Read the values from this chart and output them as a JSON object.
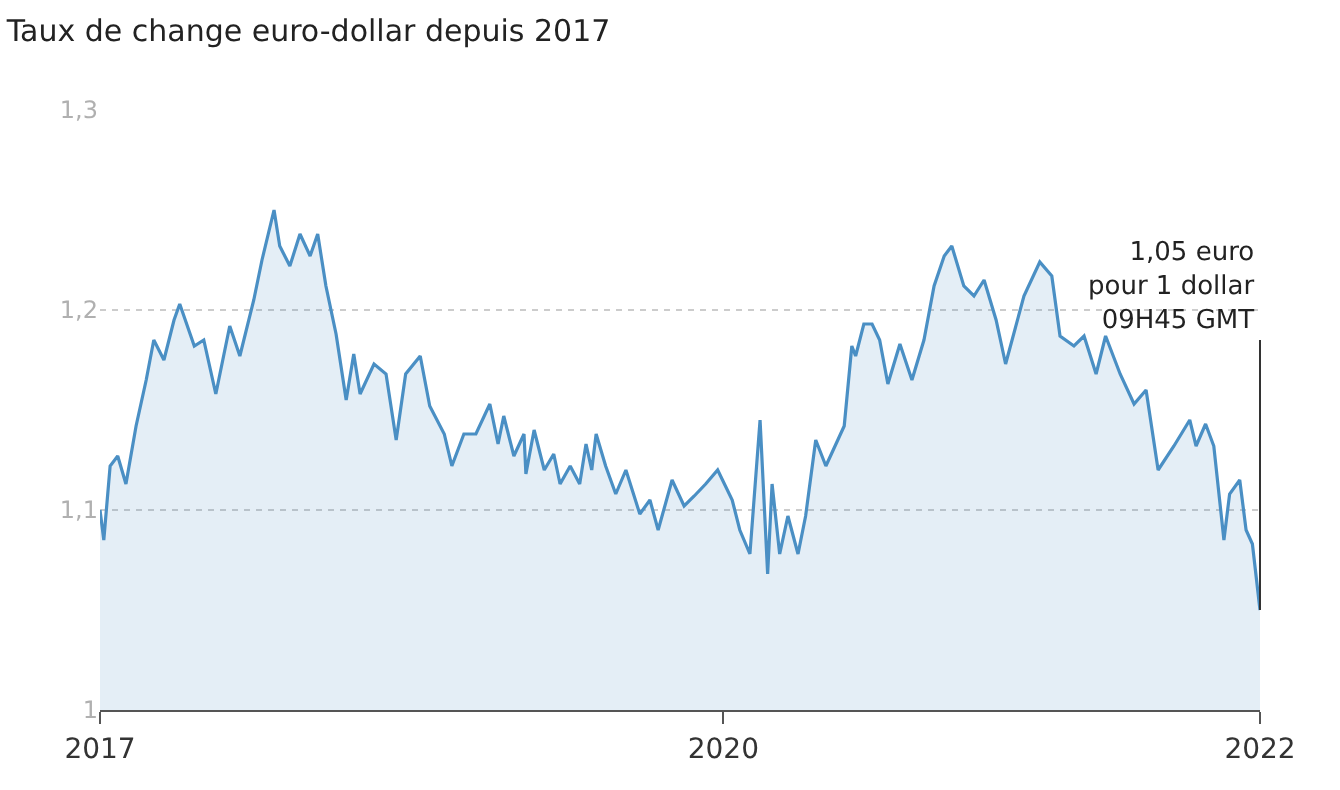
{
  "chart_data": {
    "type": "area",
    "title": "Taux de change euro-dollar depuis 2017",
    "x": [
      "2017-04-21",
      "2017-04-27",
      "2017-05-07",
      "2017-05-19",
      "2017-06-01",
      "2017-06-17",
      "2017-07-03",
      "2017-07-15",
      "2017-07-31",
      "2017-08-16",
      "2017-08-25",
      "2017-09-17",
      "2017-10-02",
      "2017-10-21",
      "2017-11-12",
      "2017-11-28",
      "2017-12-20",
      "2018-01-02",
      "2018-01-21",
      "2018-01-30",
      "2018-02-15",
      "2018-03-03",
      "2018-03-19",
      "2018-03-31",
      "2018-04-13",
      "2018-04-29",
      "2018-05-15",
      "2018-05-27",
      "2018-06-06",
      "2018-06-28",
      "2018-07-17",
      "2018-08-02",
      "2018-08-17",
      "2018-09-09",
      "2018-09-24",
      "2018-10-17",
      "2018-10-29",
      "2018-11-17",
      "2018-12-06",
      "2018-12-28",
      "2019-01-10",
      "2019-01-19",
      "2019-02-04",
      "2019-02-20",
      "2019-02-23",
      "2019-03-08",
      "2019-03-24",
      "2019-04-08",
      "2019-04-18",
      "2019-05-04",
      "2019-05-19",
      "2019-05-29",
      "2019-06-07",
      "2019-06-14",
      "2019-06-29",
      "2019-07-15",
      "2019-07-31",
      "2019-08-22",
      "2019-09-07",
      "2019-09-20",
      "2019-10-12",
      "2019-10-31",
      "2019-11-16",
      "2019-12-04",
      "2019-12-23",
      "2020-01-15",
      "2020-01-27",
      "2020-02-12",
      "2020-02-28",
      "2020-03-11",
      "2020-03-18",
      "2020-03-30",
      "2020-04-12",
      "2020-04-28",
      "2020-05-10",
      "2020-05-26",
      "2020-06-11",
      "2020-07-10",
      "2020-07-22",
      "2020-07-28",
      "2020-08-10",
      "2020-08-23",
      "2020-09-04",
      "2020-09-17",
      "2020-10-06",
      "2020-10-25",
      "2020-11-13",
      "2020-11-29",
      "2020-12-15",
      "2020-12-27",
      "2021-01-15",
      "2021-01-31",
      "2021-02-16",
      "2021-03-07",
      "2021-03-22",
      "2021-04-20",
      "2021-05-15",
      "2021-06-03",
      "2021-06-16",
      "2021-07-08",
      "2021-07-24",
      "2021-08-12",
      "2021-08-27",
      "2021-09-19",
      "2021-10-11",
      "2021-10-30",
      "2021-11-18",
      "2021-12-13",
      "2022-01-07",
      "2022-01-17",
      "2022-02-01",
      "2022-02-14",
      "2022-03-02",
      "2022-03-11",
      "2022-03-27",
      "2022-04-06",
      "2022-04-16",
      "2022-04-28"
    ],
    "series": [
      {
        "color": "#4a8fc4",
        "values": [
          1.1,
          1.085,
          1.122,
          1.127,
          1.113,
          1.142,
          1.165,
          1.185,
          1.175,
          1.195,
          1.203,
          1.182,
          1.185,
          1.158,
          1.192,
          1.177,
          1.205,
          1.225,
          1.25,
          1.232,
          1.222,
          1.238,
          1.227,
          1.238,
          1.212,
          1.188,
          1.155,
          1.178,
          1.158,
          1.173,
          1.168,
          1.135,
          1.168,
          1.177,
          1.152,
          1.138,
          1.122,
          1.138,
          1.138,
          1.153,
          1.133,
          1.147,
          1.127,
          1.138,
          1.118,
          1.14,
          1.12,
          1.128,
          1.113,
          1.122,
          1.113,
          1.133,
          1.12,
          1.138,
          1.122,
          1.108,
          1.12,
          1.098,
          1.105,
          1.09,
          1.115,
          1.102,
          1.107,
          1.113,
          1.12,
          1.105,
          1.09,
          1.078,
          1.145,
          1.068,
          1.113,
          1.078,
          1.097,
          1.078,
          1.097,
          1.135,
          1.122,
          1.142,
          1.182,
          1.177,
          1.193,
          1.193,
          1.185,
          1.163,
          1.183,
          1.165,
          1.185,
          1.212,
          1.227,
          1.232,
          1.212,
          1.207,
          1.215,
          1.195,
          1.173,
          1.207,
          1.224,
          1.217,
          1.187,
          1.182,
          1.187,
          1.168,
          1.187,
          1.168,
          1.153,
          1.16,
          1.12,
          1.132,
          1.145,
          1.132,
          1.143,
          1.132,
          1.085,
          1.108,
          1.115,
          1.09,
          1.083,
          1.05
        ]
      }
    ],
    "xlim": [
      "2017-04-21",
      "2022-04-28"
    ],
    "xticks": [
      {
        "value": "2017-04-21",
        "label": "2017"
      },
      {
        "value": "2020-01-01",
        "label": "2020"
      },
      {
        "value": "2022-04-28",
        "label": "2022"
      }
    ],
    "ylim": [
      1,
      1.3
    ],
    "yticks": [
      1,
      {
        "value": 1.1,
        "label": "1,1"
      },
      {
        "value": 1.2,
        "label": "1,2"
      },
      {
        "value": 1.3,
        "label": "1,3"
      }
    ],
    "grid": "y",
    "annotations": [
      {
        "text": "1,05 euro\npour 1 dollar\n09H45 GMT",
        "x": "2022-04-28",
        "y": 1.05
      }
    ]
  }
}
